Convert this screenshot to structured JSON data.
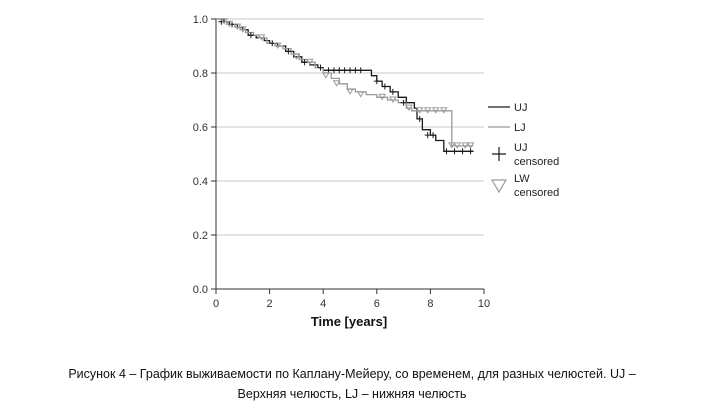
{
  "chart_data": {
    "type": "line",
    "title": "",
    "xlabel": "Time [years]",
    "ylabel": "",
    "xlim": [
      0,
      10
    ],
    "ylim": [
      0,
      1.0
    ],
    "x_ticks": [
      "0",
      "2",
      "4",
      "6",
      "8",
      "10"
    ],
    "y_ticks": [
      "0.0",
      "0.2",
      "0.4",
      "0.6",
      "0.8",
      "1.0"
    ],
    "grid": "horizontal",
    "legend_position": "right",
    "colors": {
      "UJ": "#1a1a1a",
      "LJ": "#9a9a9a",
      "grid": "#c8c8c8"
    },
    "legend": [
      {
        "key": "UJ",
        "label": "UJ",
        "marker": "line"
      },
      {
        "key": "LJ",
        "label": "LJ",
        "marker": "line"
      },
      {
        "key": "UJ_censored",
        "label": "UJ",
        "label2": "censored",
        "marker": "plus"
      },
      {
        "key": "LW_censored",
        "label": "LW",
        "label2": "censored",
        "marker": "triangle"
      }
    ],
    "series": [
      {
        "name": "UJ",
        "x": [
          0,
          0.3,
          0.5,
          0.8,
          1.0,
          1.2,
          1.5,
          1.8,
          2.0,
          2.3,
          2.6,
          2.9,
          3.2,
          3.5,
          3.8,
          4.0,
          5.5,
          5.8,
          6.0,
          6.2,
          6.5,
          6.8,
          7.1,
          7.4,
          7.5,
          7.7,
          8.0,
          8.2,
          8.5,
          9.6
        ],
        "y": [
          1.0,
          0.99,
          0.98,
          0.97,
          0.96,
          0.94,
          0.93,
          0.92,
          0.91,
          0.9,
          0.88,
          0.86,
          0.84,
          0.83,
          0.82,
          0.81,
          0.81,
          0.79,
          0.77,
          0.75,
          0.73,
          0.71,
          0.69,
          0.67,
          0.63,
          0.59,
          0.57,
          0.55,
          0.51,
          0.51
        ]
      },
      {
        "name": "LJ",
        "x": [
          0,
          0.2,
          0.4,
          0.7,
          0.9,
          1.1,
          1.4,
          1.6,
          1.9,
          2.2,
          2.5,
          2.8,
          3.1,
          3.4,
          3.7,
          4.0,
          4.3,
          4.6,
          4.9,
          5.2,
          5.6,
          6.0,
          6.4,
          6.8,
          7.1,
          7.3,
          8.8,
          9.6
        ],
        "y": [
          1.0,
          0.99,
          0.98,
          0.97,
          0.96,
          0.95,
          0.94,
          0.93,
          0.91,
          0.9,
          0.89,
          0.87,
          0.85,
          0.84,
          0.82,
          0.8,
          0.78,
          0.76,
          0.74,
          0.73,
          0.72,
          0.71,
          0.7,
          0.69,
          0.67,
          0.66,
          0.53,
          0.53
        ]
      }
    ],
    "censored": [
      {
        "name": "UJ censored",
        "x": [
          0.2,
          0.6,
          1.3,
          2.1,
          2.7,
          3.3,
          3.9,
          4.2,
          4.4,
          4.6,
          4.8,
          5.0,
          5.2,
          5.4,
          6.0,
          6.3,
          6.6,
          7.0,
          7.6,
          7.9,
          8.1,
          8.6,
          8.9,
          9.2,
          9.5
        ],
        "y": [
          0.99,
          0.98,
          0.94,
          0.91,
          0.88,
          0.84,
          0.82,
          0.81,
          0.81,
          0.81,
          0.81,
          0.81,
          0.81,
          0.81,
          0.77,
          0.75,
          0.73,
          0.69,
          0.63,
          0.57,
          0.57,
          0.51,
          0.51,
          0.51,
          0.51
        ]
      },
      {
        "name": "LW censored",
        "x": [
          0.3,
          0.5,
          0.8,
          1.0,
          1.7,
          2.3,
          3.0,
          3.5,
          4.1,
          4.5,
          5.0,
          5.4,
          6.2,
          6.6,
          7.2,
          7.6,
          7.9,
          8.2,
          8.5,
          8.8,
          9.0,
          9.3,
          9.5
        ],
        "y": [
          0.99,
          0.98,
          0.97,
          0.96,
          0.93,
          0.9,
          0.86,
          0.84,
          0.79,
          0.76,
          0.73,
          0.72,
          0.71,
          0.7,
          0.67,
          0.66,
          0.66,
          0.66,
          0.66,
          0.53,
          0.53,
          0.53,
          0.53
        ]
      }
    ]
  },
  "caption": {
    "line1": "Рисунок 4 – График выживаемости по Каплану-Мейеру, со временем, для разных челюстей. UJ –",
    "line2": "Верхняя челюсть, LJ – нижняя челюсть"
  }
}
